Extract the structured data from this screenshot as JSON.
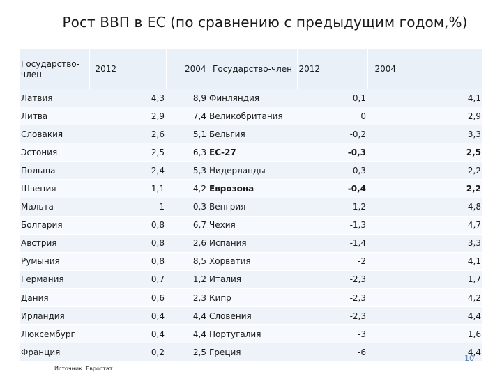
{
  "title": "Рост ВВП в ЕС (по сравнению с предыдущим годом,%)",
  "headers": {
    "state_left": "Государство-член",
    "year_2012_left": "2012",
    "year_2004_left": "2004",
    "state_right": "Государство-член",
    "year_2012_right": "2012",
    "year_2004_right": "2004"
  },
  "rows": [
    {
      "l_name": "Латвия",
      "l_2012": "4,3",
      "l_2004": "8,9",
      "r_name": "Финляндия",
      "r_2012": "0,1",
      "r_2004": "4,1",
      "bold": false
    },
    {
      "l_name": "Литва",
      "l_2012": "2,9",
      "l_2004": "7,4",
      "r_name": "Великобритания",
      "r_2012": "0",
      "r_2004": "2,9",
      "bold": false
    },
    {
      "l_name": "Словакия",
      "l_2012": "2,6",
      "l_2004": "5,1",
      "r_name": "Бельгия",
      "r_2012": "-0,2",
      "r_2004": "3,3",
      "bold": false
    },
    {
      "l_name": "Эстония",
      "l_2012": "2,5",
      "l_2004": "6,3",
      "r_name": "ЕС-27",
      "r_2012": "-0,3",
      "r_2004": "2,5",
      "bold": true
    },
    {
      "l_name": "Польша",
      "l_2012": "2,4",
      "l_2004": "5,3",
      "r_name": "Нидерланды",
      "r_2012": "-0,3",
      "r_2004": "2,2",
      "bold": false
    },
    {
      "l_name": "Швеция",
      "l_2012": "1,1",
      "l_2004": "4,2",
      "r_name": "Еврозона",
      "r_2012": "-0,4",
      "r_2004": "2,2",
      "bold": true
    },
    {
      "l_name": "Мальта",
      "l_2012": "1",
      "l_2004": "-0,3",
      "r_name": "Венгрия",
      "r_2012": "-1,2",
      "r_2004": "4,8",
      "bold": false
    },
    {
      "l_name": "Болгария",
      "l_2012": "0,8",
      "l_2004": "6,7",
      "r_name": "Чехия",
      "r_2012": "-1,3",
      "r_2004": "4,7",
      "bold": false
    },
    {
      "l_name": "Австрия",
      "l_2012": "0,8",
      "l_2004": "2,6",
      "r_name": "Испания",
      "r_2012": "-1,4",
      "r_2004": "3,3",
      "bold": false
    },
    {
      "l_name": "Румыния",
      "l_2012": "0,8",
      "l_2004": "8,5",
      "r_name": "Хорватия",
      "r_2012": "-2",
      "r_2004": "4,1",
      "bold": false
    },
    {
      "l_name": "Германия",
      "l_2012": "0,7",
      "l_2004": "1,2",
      "r_name": "Италия",
      "r_2012": "-2,3",
      "r_2004": "1,7",
      "bold": false
    },
    {
      "l_name": "Дания",
      "l_2012": "0,6",
      "l_2004": "2,3",
      "r_name": "Кипр",
      "r_2012": "-2,3",
      "r_2004": "4,2",
      "bold": false
    },
    {
      "l_name": "Ирландия",
      "l_2012": "0,4",
      "l_2004": "4,4",
      "r_name": "Словения",
      "r_2012": "-2,3",
      "r_2004": "4,4",
      "bold": false
    },
    {
      "l_name": "Люксембург",
      "l_2012": "0,4",
      "l_2004": "4,4",
      "r_name": "Португалия",
      "r_2012": "-3",
      "r_2004": "1,6",
      "bold": false
    },
    {
      "l_name": "Франция",
      "l_2012": "0,2",
      "l_2004": "2,5",
      "r_name": "Греция",
      "r_2012": "-6",
      "r_2004": "4,4",
      "bold": false
    }
  ],
  "source": "Источник: Евростат",
  "page_number": "10"
}
